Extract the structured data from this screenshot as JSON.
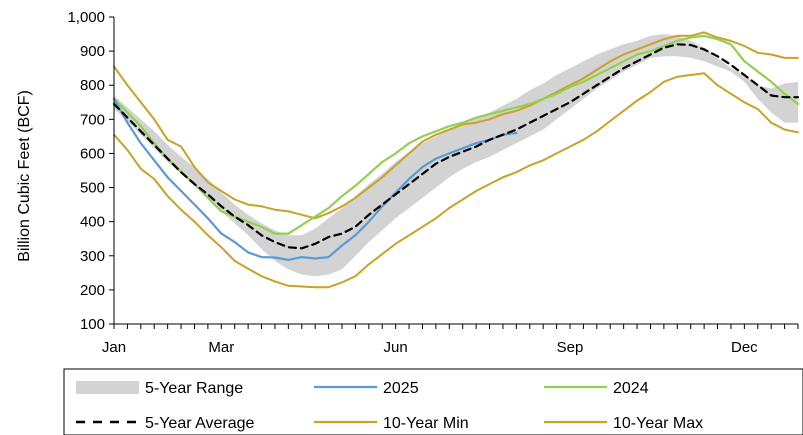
{
  "chart_data": {
    "type": "line",
    "title": "",
    "ylabel": "Billion Cubic  Feet (BCF)",
    "xlabel": "",
    "ylim": [
      100,
      1000
    ],
    "y_ticks": [
      100,
      200,
      300,
      400,
      500,
      600,
      700,
      800,
      900,
      1000
    ],
    "y_tick_labels": [
      "100",
      "200",
      "300",
      "400",
      "500",
      "600",
      "700",
      "800",
      "900",
      "1,000"
    ],
    "x_range": [
      1,
      52
    ],
    "x_unit": "week of year",
    "x_tick_labels": [
      {
        "label": "Jan",
        "week": 1
      },
      {
        "label": "Mar",
        "week": 9
      },
      {
        "label": "Jun",
        "week": 22
      },
      {
        "label": "Sep",
        "week": 35
      },
      {
        "label": "Dec",
        "week": 48
      }
    ],
    "grid": false,
    "legend_position": "bottom",
    "legend": [
      {
        "name": "5-Year Range",
        "key": "range"
      },
      {
        "name": "2025",
        "key": "y2025"
      },
      {
        "name": "2024",
        "key": "y2024"
      },
      {
        "name": "5-Year Average",
        "key": "avg"
      },
      {
        "name": "10-Year Min",
        "key": "min10"
      },
      {
        "name": "10-Year Max",
        "key": "max10"
      }
    ],
    "colors": {
      "range": "#d3d3d3",
      "y2025": "#5b9bd5",
      "y2024": "#92d050",
      "avg": "#000000",
      "min10": "#c9a227",
      "max10": "#c9a227"
    },
    "series": {
      "range_low": [
        730,
        695,
        655,
        615,
        575,
        540,
        505,
        470,
        430,
        395,
        360,
        320,
        285,
        260,
        245,
        240,
        245,
        260,
        300,
        340,
        375,
        410,
        440,
        470,
        500,
        530,
        555,
        575,
        590,
        610,
        630,
        650,
        670,
        700,
        730,
        760,
        790,
        815,
        840,
        860,
        880,
        885,
        885,
        880,
        870,
        855,
        840,
        810,
        760,
        720,
        690,
        690
      ],
      "range_high": [
        770,
        735,
        700,
        665,
        625,
        590,
        560,
        525,
        485,
        450,
        420,
        395,
        375,
        360,
        360,
        380,
        410,
        440,
        475,
        510,
        540,
        575,
        605,
        630,
        650,
        670,
        690,
        705,
        720,
        740,
        760,
        785,
        805,
        830,
        850,
        870,
        890,
        905,
        920,
        930,
        945,
        950,
        945,
        930,
        910,
        880,
        850,
        830,
        800,
        790,
        805,
        810
      ],
      "avg": [
        745,
        705,
        665,
        625,
        585,
        545,
        510,
        480,
        445,
        415,
        390,
        360,
        340,
        325,
        322,
        335,
        355,
        365,
        385,
        420,
        450,
        480,
        510,
        540,
        570,
        590,
        605,
        620,
        640,
        655,
        670,
        690,
        710,
        730,
        750,
        775,
        800,
        825,
        850,
        870,
        890,
        910,
        920,
        918,
        905,
        885,
        860,
        830,
        800,
        770,
        765,
        765
      ],
      "y2025": [
        760,
        690,
        630,
        580,
        530,
        490,
        450,
        410,
        365,
        340,
        310,
        296,
        295,
        288,
        296,
        292,
        296,
        330,
        360,
        400,
        445,
        485,
        525,
        560,
        585,
        600,
        615,
        630,
        640,
        655,
        660
      ],
      "y2024": [
        760,
        720,
        680,
        630,
        585,
        545,
        510,
        470,
        430,
        415,
        400,
        385,
        365,
        365,
        390,
        415,
        440,
        475,
        505,
        540,
        575,
        600,
        630,
        650,
        665,
        680,
        690,
        705,
        715,
        725,
        735,
        745,
        760,
        775,
        795,
        810,
        830,
        850,
        870,
        890,
        900,
        915,
        930,
        940,
        945,
        935,
        920,
        870,
        840,
        810,
        775,
        745
      ],
      "min10": [
        655,
        610,
        555,
        525,
        475,
        435,
        400,
        360,
        325,
        285,
        262,
        240,
        225,
        212,
        210,
        208,
        208,
        222,
        240,
        275,
        305,
        335,
        360,
        385,
        410,
        440,
        465,
        490,
        510,
        530,
        545,
        565,
        580,
        600,
        620,
        640,
        665,
        695,
        725,
        755,
        780,
        810,
        825,
        830,
        835,
        800,
        775,
        750,
        730,
        690,
        670,
        662
      ],
      "max10": [
        855,
        800,
        750,
        700,
        640,
        620,
        560,
        515,
        490,
        465,
        450,
        445,
        435,
        430,
        420,
        410,
        425,
        445,
        470,
        500,
        530,
        565,
        600,
        635,
        655,
        670,
        685,
        690,
        700,
        715,
        725,
        740,
        760,
        780,
        800,
        820,
        845,
        870,
        890,
        905,
        920,
        935,
        945,
        945,
        955,
        940,
        930,
        915,
        895,
        890,
        880,
        880
      ]
    }
  }
}
